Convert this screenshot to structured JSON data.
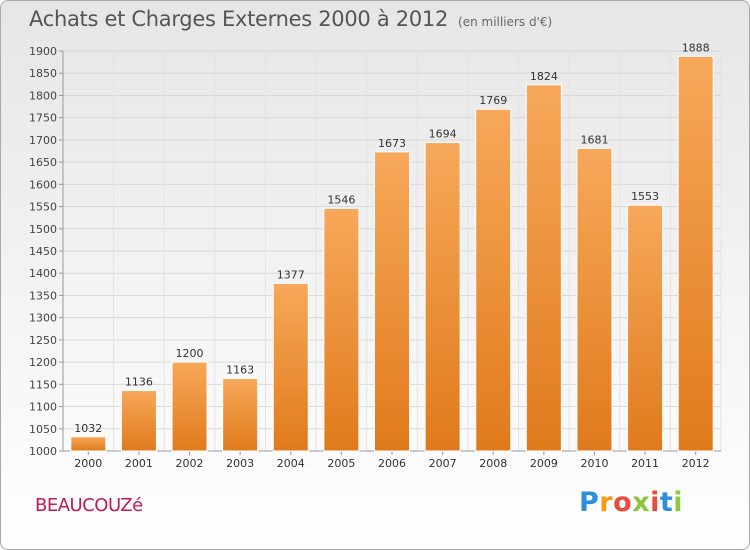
{
  "chart_data": {
    "type": "bar",
    "title": "Achats et Charges Externes 2000 à 2012",
    "subtitle": "(en milliers d'€)",
    "categories": [
      "2000",
      "2001",
      "2002",
      "2003",
      "2004",
      "2005",
      "2006",
      "2007",
      "2008",
      "2009",
      "2010",
      "2011",
      "2012"
    ],
    "values": [
      1032,
      1136,
      1200,
      1163,
      1377,
      1546,
      1673,
      1694,
      1769,
      1824,
      1681,
      1553,
      1888
    ],
    "ylim": [
      1000,
      1900
    ],
    "yticks": [
      1000,
      1050,
      1100,
      1150,
      1200,
      1250,
      1300,
      1350,
      1400,
      1450,
      1500,
      1550,
      1600,
      1650,
      1700,
      1750,
      1800,
      1850,
      1900
    ],
    "grid": true,
    "bar_color": "#f08a2c"
  },
  "footer": {
    "town": "BEAUCOUZé",
    "logo": {
      "letters": [
        "P",
        "r",
        "o",
        "x",
        "i",
        "t",
        "i"
      ],
      "colors": [
        "#2e8fd8",
        "#f39c12",
        "#e74c3c",
        "#8dc63f",
        "#e74c3c",
        "#2e8fd8",
        "#8dc63f"
      ]
    }
  }
}
